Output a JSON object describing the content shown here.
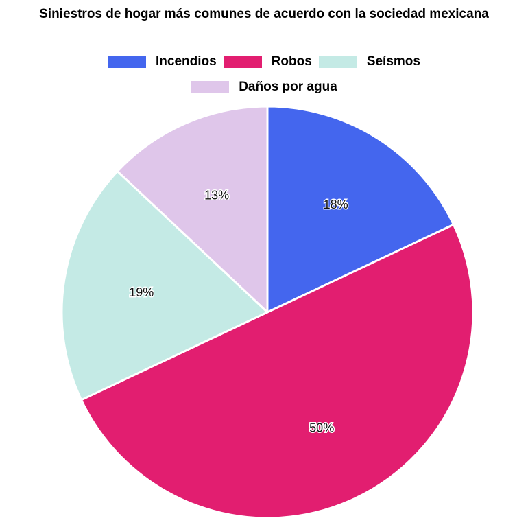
{
  "chart_data": {
    "type": "pie",
    "title": "Siniestros de hogar más comunes de acuerdo con la sociedad mexicana",
    "categories": [
      "Incendios",
      "Robos",
      "Seísmos",
      "Daños por agua"
    ],
    "values": [
      18,
      50,
      19,
      13
    ],
    "value_labels": [
      "18%",
      "50%",
      "19%",
      "13%"
    ],
    "colors": [
      "#4466EE",
      "#E21E70",
      "#C4EAE5",
      "#DFC6EA"
    ],
    "legend_position": "top"
  }
}
